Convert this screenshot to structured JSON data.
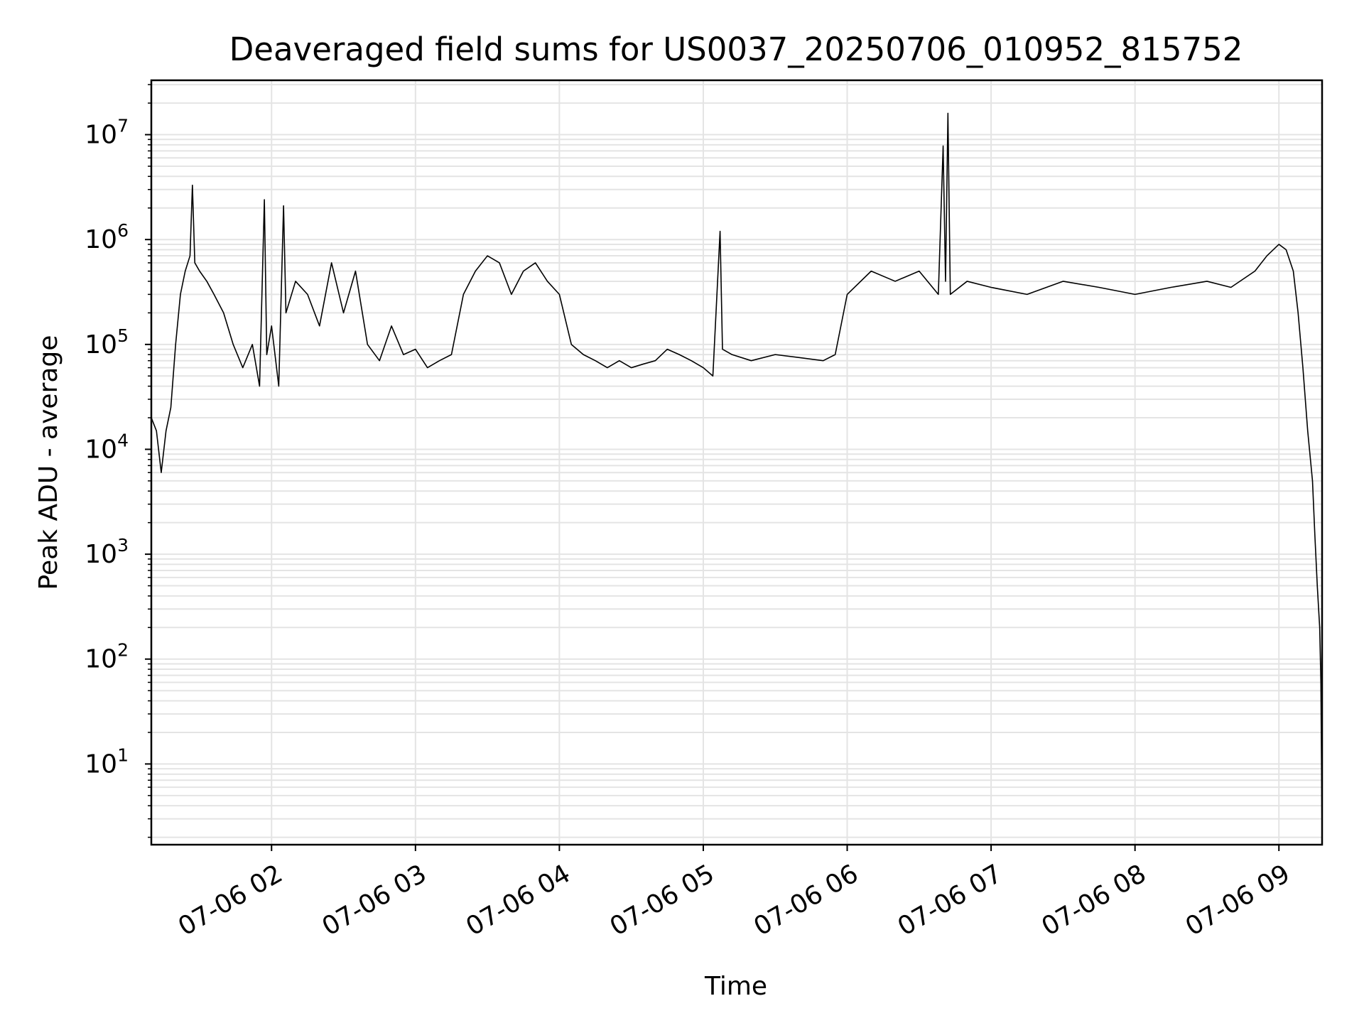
{
  "chart_data": {
    "type": "line",
    "title": "Deaveraged field sums for US0037_20250706_010952_815752",
    "xlabel": "Time",
    "ylabel": "Peak ADU - average",
    "yscale": "log",
    "grid": true,
    "ylim": [
      1.7,
      33000000.0
    ],
    "xlim": [
      "2025-07-06 01:09:52",
      "2025-07-06 09:18:00"
    ],
    "x_ticks": [
      {
        "t": "2025-07-06 02:00:00",
        "label": "07-06 02"
      },
      {
        "t": "2025-07-06 03:00:00",
        "label": "07-06 03"
      },
      {
        "t": "2025-07-06 04:00:00",
        "label": "07-06 04"
      },
      {
        "t": "2025-07-06 05:00:00",
        "label": "07-06 05"
      },
      {
        "t": "2025-07-06 06:00:00",
        "label": "07-06 06"
      },
      {
        "t": "2025-07-06 07:00:00",
        "label": "07-06 07"
      },
      {
        "t": "2025-07-06 08:00:00",
        "label": "07-06 08"
      },
      {
        "t": "2025-07-06 09:00:00",
        "label": "07-06 09"
      }
    ],
    "y_ticks": [
      {
        "v": 10,
        "base": "10",
        "exp": "1"
      },
      {
        "v": 100,
        "base": "10",
        "exp": "2"
      },
      {
        "v": 1000,
        "base": "10",
        "exp": "3"
      },
      {
        "v": 10000,
        "base": "10",
        "exp": "4"
      },
      {
        "v": 100000,
        "base": "10",
        "exp": "5"
      },
      {
        "v": 1000000,
        "base": "10",
        "exp": "6"
      },
      {
        "v": 10000000,
        "base": "10",
        "exp": "7"
      }
    ],
    "series": [
      {
        "color": "#000000",
        "points": [
          [
            "2025-07-06 01:09:52",
            20000
          ],
          [
            "2025-07-06 01:12:00",
            15000
          ],
          [
            "2025-07-06 01:14:00",
            6000
          ],
          [
            "2025-07-06 01:16:00",
            15000
          ],
          [
            "2025-07-06 01:18:00",
            25000
          ],
          [
            "2025-07-06 01:20:00",
            100000
          ],
          [
            "2025-07-06 01:22:00",
            300000
          ],
          [
            "2025-07-06 01:24:00",
            500000
          ],
          [
            "2025-07-06 01:26:00",
            700000
          ],
          [
            "2025-07-06 01:27:00",
            3300000
          ],
          [
            "2025-07-06 01:28:00",
            600000
          ],
          [
            "2025-07-06 01:30:00",
            500000
          ],
          [
            "2025-07-06 01:33:00",
            400000
          ],
          [
            "2025-07-06 01:36:00",
            300000
          ],
          [
            "2025-07-06 01:40:00",
            200000
          ],
          [
            "2025-07-06 01:44:00",
            100000
          ],
          [
            "2025-07-06 01:48:00",
            60000
          ],
          [
            "2025-07-06 01:52:00",
            100000
          ],
          [
            "2025-07-06 01:55:00",
            40000
          ],
          [
            "2025-07-06 01:57:00",
            2400000
          ],
          [
            "2025-07-06 01:58:00",
            80000
          ],
          [
            "2025-07-06 02:00:00",
            150000
          ],
          [
            "2025-07-06 02:03:00",
            40000
          ],
          [
            "2025-07-06 02:05:00",
            2100000
          ],
          [
            "2025-07-06 02:06:00",
            200000
          ],
          [
            "2025-07-06 02:10:00",
            400000
          ],
          [
            "2025-07-06 02:15:00",
            300000
          ],
          [
            "2025-07-06 02:20:00",
            150000
          ],
          [
            "2025-07-06 02:25:00",
            600000
          ],
          [
            "2025-07-06 02:30:00",
            200000
          ],
          [
            "2025-07-06 02:35:00",
            500000
          ],
          [
            "2025-07-06 02:40:00",
            100000
          ],
          [
            "2025-07-06 02:45:00",
            70000
          ],
          [
            "2025-07-06 02:50:00",
            150000
          ],
          [
            "2025-07-06 02:55:00",
            80000
          ],
          [
            "2025-07-06 03:00:00",
            90000
          ],
          [
            "2025-07-06 03:05:00",
            60000
          ],
          [
            "2025-07-06 03:10:00",
            70000
          ],
          [
            "2025-07-06 03:15:00",
            80000
          ],
          [
            "2025-07-06 03:20:00",
            300000
          ],
          [
            "2025-07-06 03:25:00",
            500000
          ],
          [
            "2025-07-06 03:30:00",
            700000
          ],
          [
            "2025-07-06 03:35:00",
            600000
          ],
          [
            "2025-07-06 03:40:00",
            300000
          ],
          [
            "2025-07-06 03:45:00",
            500000
          ],
          [
            "2025-07-06 03:50:00",
            600000
          ],
          [
            "2025-07-06 03:55:00",
            400000
          ],
          [
            "2025-07-06 04:00:00",
            300000
          ],
          [
            "2025-07-06 04:05:00",
            100000
          ],
          [
            "2025-07-06 04:10:00",
            80000
          ],
          [
            "2025-07-06 04:15:00",
            70000
          ],
          [
            "2025-07-06 04:20:00",
            60000
          ],
          [
            "2025-07-06 04:25:00",
            70000
          ],
          [
            "2025-07-06 04:30:00",
            60000
          ],
          [
            "2025-07-06 04:35:00",
            65000
          ],
          [
            "2025-07-06 04:40:00",
            70000
          ],
          [
            "2025-07-06 04:45:00",
            90000
          ],
          [
            "2025-07-06 04:50:00",
            80000
          ],
          [
            "2025-07-06 04:55:00",
            70000
          ],
          [
            "2025-07-06 05:00:00",
            60000
          ],
          [
            "2025-07-06 05:04:00",
            50000
          ],
          [
            "2025-07-06 05:07:00",
            1200000
          ],
          [
            "2025-07-06 05:08:00",
            90000
          ],
          [
            "2025-07-06 05:12:00",
            80000
          ],
          [
            "2025-07-06 05:20:00",
            70000
          ],
          [
            "2025-07-06 05:30:00",
            80000
          ],
          [
            "2025-07-06 05:40:00",
            75000
          ],
          [
            "2025-07-06 05:50:00",
            70000
          ],
          [
            "2025-07-06 05:55:00",
            80000
          ],
          [
            "2025-07-06 06:00:00",
            300000
          ],
          [
            "2025-07-06 06:10:00",
            500000
          ],
          [
            "2025-07-06 06:20:00",
            400000
          ],
          [
            "2025-07-06 06:30:00",
            500000
          ],
          [
            "2025-07-06 06:38:00",
            300000
          ],
          [
            "2025-07-06 06:40:00",
            7800000
          ],
          [
            "2025-07-06 06:41:00",
            400000
          ],
          [
            "2025-07-06 06:42:00",
            16000000
          ],
          [
            "2025-07-06 06:43:00",
            300000
          ],
          [
            "2025-07-06 06:50:00",
            400000
          ],
          [
            "2025-07-06 07:00:00",
            350000
          ],
          [
            "2025-07-06 07:15:00",
            300000
          ],
          [
            "2025-07-06 07:30:00",
            400000
          ],
          [
            "2025-07-06 07:45:00",
            350000
          ],
          [
            "2025-07-06 08:00:00",
            300000
          ],
          [
            "2025-07-06 08:15:00",
            350000
          ],
          [
            "2025-07-06 08:30:00",
            400000
          ],
          [
            "2025-07-06 08:40:00",
            350000
          ],
          [
            "2025-07-06 08:50:00",
            500000
          ],
          [
            "2025-07-06 08:55:00",
            700000
          ],
          [
            "2025-07-06 09:00:00",
            900000
          ],
          [
            "2025-07-06 09:03:00",
            800000
          ],
          [
            "2025-07-06 09:06:00",
            500000
          ],
          [
            "2025-07-06 09:08:00",
            200000
          ],
          [
            "2025-07-06 09:10:00",
            60000
          ],
          [
            "2025-07-06 09:12:00",
            15000
          ],
          [
            "2025-07-06 09:14:00",
            5000
          ],
          [
            "2025-07-06 09:15:00",
            1500
          ],
          [
            "2025-07-06 09:16:00",
            500
          ],
          [
            "2025-07-06 09:17:00",
            200
          ],
          [
            "2025-07-06 09:17:30",
            60
          ],
          [
            "2025-07-06 09:18:00",
            2
          ]
        ]
      }
    ]
  }
}
